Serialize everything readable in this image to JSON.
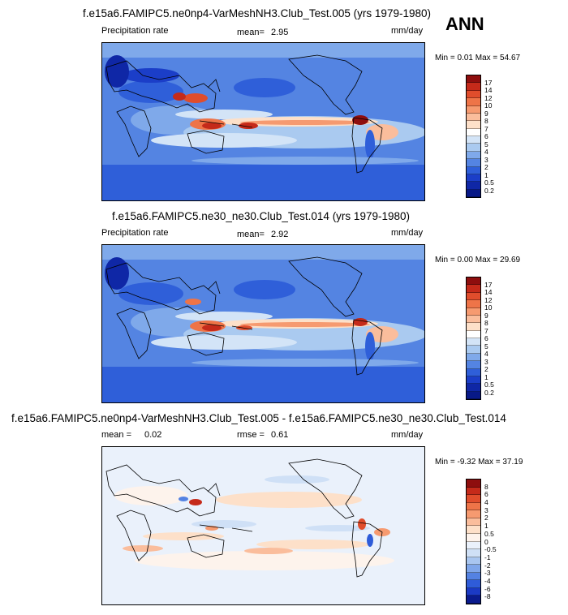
{
  "season": "ANN",
  "panels": [
    {
      "title": "f.e15a6.FAMIPC5.ne0np4-VarMeshNH3.Club_Test.005 (yrs 1979-1980)",
      "left_label": "Precipitation rate",
      "mean_label": "mean=",
      "mean_value": "2.95",
      "stat2_label": "",
      "stat2_value": "",
      "units": "mm/day",
      "min_max": "Min =   0.01 Max =  54.67",
      "colorbar_levels": [
        "17",
        "14",
        "12",
        "10",
        "9",
        "8",
        "7",
        "6",
        "5",
        "4",
        "3",
        "2",
        "1",
        "0.5",
        "0.2"
      ],
      "colorbar_colors": [
        "#8e0e0e",
        "#c52a1a",
        "#e04d2c",
        "#ee7448",
        "#f69a70",
        "#fabd9c",
        "#fde0c9",
        "#ffffff",
        "#d3e4f7",
        "#aacaf0",
        "#7fa9ea",
        "#5484e2",
        "#2f5fd9",
        "#1b3ec8",
        "#0f27a6",
        "#081987"
      ]
    },
    {
      "title": "f.e15a6.FAMIPC5.ne30_ne30.Club_Test.014 (yrs 1979-1980)",
      "left_label": "Precipitation rate",
      "mean_label": "mean=",
      "mean_value": "2.92",
      "stat2_label": "",
      "stat2_value": "",
      "units": "mm/day",
      "min_max": "Min =   0.00 Max =  29.69",
      "colorbar_levels": [
        "17",
        "14",
        "12",
        "10",
        "9",
        "8",
        "7",
        "6",
        "5",
        "4",
        "3",
        "2",
        "1",
        "0.5",
        "0.2"
      ],
      "colorbar_colors": [
        "#8e0e0e",
        "#c52a1a",
        "#e04d2c",
        "#ee7448",
        "#f69a70",
        "#fabd9c",
        "#fde0c9",
        "#ffffff",
        "#d3e4f7",
        "#aacaf0",
        "#7fa9ea",
        "#5484e2",
        "#2f5fd9",
        "#1b3ec8",
        "#0f27a6",
        "#081987"
      ]
    },
    {
      "title": "f.e15a6.FAMIPC5.ne0np4-VarMeshNH3.Club_Test.005 - f.e15a6.FAMIPC5.ne30_ne30.Club_Test.014",
      "left_label": "mean =",
      "mean_label": "",
      "mean_value": "0.02",
      "stat2_label": "rmse =",
      "stat2_value": "0.61",
      "units": "mm/day",
      "min_max": "Min =  -9.32 Max =  37.19",
      "colorbar_levels": [
        "8",
        "6",
        "4",
        "3",
        "2",
        "1",
        "0.5",
        "0",
        "-0.5",
        "-1",
        "-2",
        "-3",
        "-4",
        "-6",
        "-8"
      ],
      "colorbar_colors": [
        "#8e0e0e",
        "#c52a1a",
        "#e04d2c",
        "#ee7448",
        "#f69a70",
        "#fabd9c",
        "#fde0c9",
        "#fdf3ec",
        "#eaf1fb",
        "#cfe0f6",
        "#a9c6f0",
        "#7fa6ea",
        "#5482e2",
        "#2f5cd9",
        "#1b3ac5",
        "#0a1b8e"
      ]
    }
  ]
}
